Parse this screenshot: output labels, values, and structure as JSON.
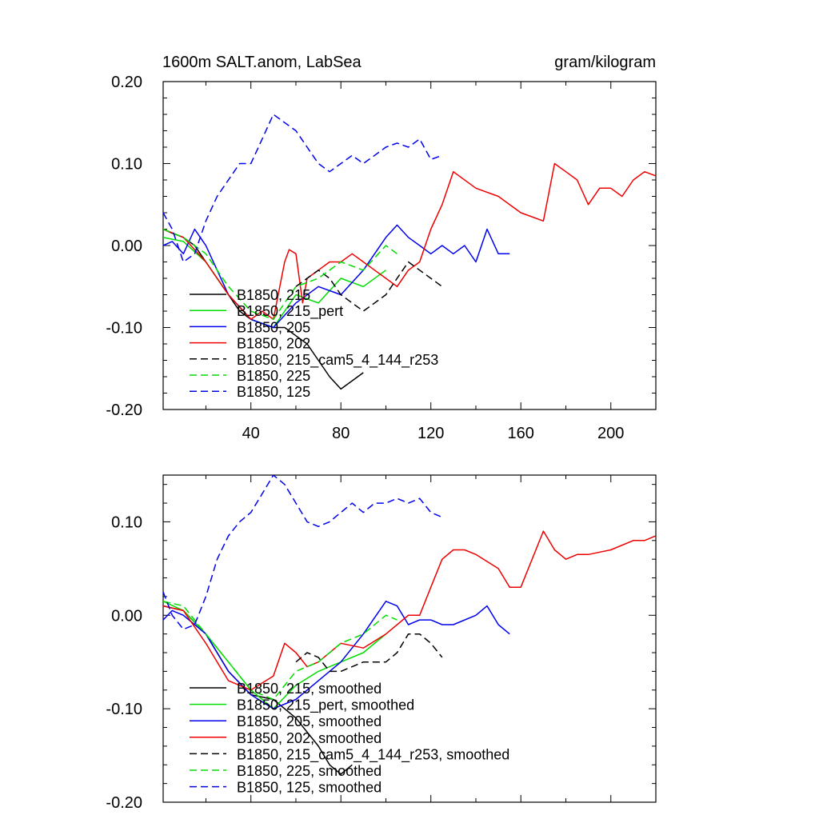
{
  "chart_data": [
    {
      "type": "line",
      "title": "1600m SALT.anom, LabSea",
      "units": "gram/kilogram",
      "xlim": [
        1,
        220
      ],
      "ylim": [
        -0.2,
        0.2
      ],
      "xticks": [
        40,
        80,
        120,
        160,
        200
      ],
      "xtick_labels": [
        "40",
        "80",
        "120",
        "160",
        "200"
      ],
      "yticks": [
        0.2,
        0.1,
        0.0,
        -0.1,
        -0.2
      ],
      "ytick_labels": [
        "0.20",
        "0.10",
        "0.00",
        "-0.10",
        "-0.20"
      ],
      "legend_position": "lower-left",
      "series": [
        {
          "name": "B1850, 215",
          "color": "#000000",
          "dash": "solid",
          "x": [
            1,
            5,
            10,
            15,
            20,
            25,
            30,
            35,
            40,
            45,
            50,
            55,
            60,
            65,
            70,
            75,
            80,
            85,
            90
          ],
          "y": [
            0.02,
            0.015,
            0.01,
            0.0,
            -0.02,
            -0.04,
            -0.06,
            -0.08,
            -0.09,
            -0.095,
            -0.1,
            -0.1,
            -0.11,
            -0.12,
            -0.14,
            -0.16,
            -0.175,
            -0.165,
            -0.155
          ]
        },
        {
          "name": "B1850, 215_pert",
          "color": "#00dd00",
          "dash": "solid",
          "x": [
            1,
            10,
            20,
            30,
            40,
            50,
            60,
            70,
            80,
            90,
            100
          ],
          "y": [
            0.01,
            0.005,
            -0.02,
            -0.06,
            -0.09,
            -0.1,
            -0.06,
            -0.07,
            -0.04,
            -0.05,
            -0.03
          ]
        },
        {
          "name": "B1850, 205",
          "color": "#0000ee",
          "dash": "solid",
          "x": [
            1,
            5,
            10,
            15,
            20,
            25,
            30,
            40,
            50,
            60,
            70,
            80,
            90,
            100,
            105,
            110,
            115,
            120,
            125,
            130,
            135,
            140,
            145,
            150,
            155
          ],
          "y": [
            0.0,
            0.005,
            -0.01,
            0.02,
            0.0,
            -0.03,
            -0.06,
            -0.09,
            -0.1,
            -0.07,
            -0.05,
            -0.06,
            -0.03,
            0.01,
            0.025,
            0.01,
            0.0,
            -0.01,
            0.0,
            -0.01,
            0.0,
            -0.02,
            0.02,
            -0.01,
            -0.01
          ]
        },
        {
          "name": "B1850, 202",
          "color": "#ee0000",
          "dash": "solid",
          "x": [
            1,
            10,
            20,
            30,
            40,
            45,
            50,
            55,
            57,
            60,
            63,
            65,
            70,
            75,
            80,
            85,
            90,
            95,
            100,
            105,
            110,
            115,
            120,
            125,
            130,
            140,
            150,
            160,
            170,
            175,
            180,
            185,
            190,
            195,
            200,
            205,
            210,
            215,
            220
          ],
          "y": [
            0.02,
            0.01,
            -0.02,
            -0.06,
            -0.09,
            -0.08,
            -0.09,
            -0.02,
            -0.005,
            -0.01,
            -0.07,
            -0.04,
            -0.03,
            -0.02,
            -0.02,
            -0.01,
            -0.02,
            -0.03,
            -0.04,
            -0.05,
            -0.03,
            -0.02,
            0.02,
            0.05,
            0.09,
            0.07,
            0.06,
            0.04,
            0.03,
            0.1,
            0.09,
            0.08,
            0.05,
            0.07,
            0.07,
            0.06,
            0.08,
            0.09,
            0.085
          ]
        },
        {
          "name": "B1850, 215_cam5_4_144_r253",
          "color": "#000000",
          "dash": "dashed",
          "x": [
            60,
            65,
            70,
            75,
            80,
            85,
            90,
            95,
            100,
            105,
            110,
            115,
            120,
            125
          ],
          "y": [
            -0.05,
            -0.04,
            -0.03,
            -0.04,
            -0.06,
            -0.07,
            -0.08,
            -0.07,
            -0.06,
            -0.04,
            -0.02,
            -0.03,
            -0.04,
            -0.05
          ]
        },
        {
          "name": "B1850, 225",
          "color": "#00dd00",
          "dash": "dashed",
          "x": [
            1,
            10,
            20,
            30,
            40,
            50,
            60,
            70,
            80,
            90,
            100,
            105
          ],
          "y": [
            0.02,
            0.01,
            -0.01,
            -0.05,
            -0.08,
            -0.09,
            -0.05,
            -0.04,
            -0.02,
            -0.03,
            0.0,
            -0.01
          ]
        },
        {
          "name": "B1850, 125",
          "color": "#0000ee",
          "dash": "dashed",
          "x": [
            1,
            5,
            10,
            15,
            20,
            25,
            30,
            35,
            40,
            45,
            50,
            55,
            60,
            65,
            70,
            75,
            80,
            85,
            90,
            95,
            100,
            105,
            110,
            115,
            120,
            125
          ],
          "y": [
            0.04,
            0.02,
            -0.02,
            -0.01,
            0.03,
            0.06,
            0.08,
            0.1,
            0.1,
            0.13,
            0.16,
            0.15,
            0.14,
            0.12,
            0.1,
            0.09,
            0.1,
            0.11,
            0.1,
            0.11,
            0.12,
            0.125,
            0.12,
            0.13,
            0.105,
            0.11
          ]
        }
      ]
    },
    {
      "type": "line",
      "xlim": [
        1,
        220
      ],
      "ylim": [
        -0.2,
        0.15
      ],
      "xticks": [
        40,
        80,
        120,
        160,
        200
      ],
      "yticks": [
        0.1,
        0.0,
        -0.1,
        -0.2
      ],
      "ytick_labels": [
        "0.10",
        "0.00",
        "-0.10",
        "-0.20"
      ],
      "legend_position": "lower-left",
      "series": [
        {
          "name": "B1850, 215, smoothed",
          "color": "#000000",
          "dash": "solid",
          "x": [
            1,
            10,
            20,
            30,
            40,
            50,
            60,
            70,
            75,
            80,
            85
          ],
          "y": [
            0.01,
            0.005,
            -0.02,
            -0.06,
            -0.085,
            -0.09,
            -0.11,
            -0.14,
            -0.16,
            -0.17,
            -0.16
          ]
        },
        {
          "name": "B1850, 215_pert, smoothed",
          "color": "#00dd00",
          "dash": "solid",
          "x": [
            1,
            10,
            20,
            30,
            40,
            50,
            60,
            70,
            80,
            90,
            100
          ],
          "y": [
            0.015,
            0.005,
            -0.02,
            -0.05,
            -0.08,
            -0.1,
            -0.075,
            -0.06,
            -0.05,
            -0.04,
            -0.02
          ]
        },
        {
          "name": "B1850, 205, smoothed",
          "color": "#0000ee",
          "dash": "solid",
          "x": [
            1,
            5,
            10,
            15,
            20,
            30,
            40,
            50,
            60,
            70,
            80,
            90,
            100,
            105,
            110,
            115,
            120,
            125,
            130,
            140,
            145,
            150,
            155
          ],
          "y": [
            -0.005,
            0.005,
            0.0,
            -0.01,
            -0.02,
            -0.06,
            -0.085,
            -0.1,
            -0.09,
            -0.07,
            -0.05,
            -0.02,
            0.015,
            0.01,
            -0.01,
            -0.005,
            -0.005,
            -0.01,
            -0.01,
            0.0,
            0.01,
            -0.01,
            -0.02
          ]
        },
        {
          "name": "B1850, 202, smoothed",
          "color": "#ee0000",
          "dash": "solid",
          "x": [
            1,
            10,
            20,
            30,
            40,
            50,
            55,
            60,
            65,
            70,
            80,
            90,
            100,
            110,
            115,
            120,
            125,
            130,
            135,
            140,
            150,
            155,
            160,
            170,
            175,
            180,
            185,
            190,
            200,
            210,
            215,
            220
          ],
          "y": [
            0.01,
            0.005,
            -0.03,
            -0.07,
            -0.08,
            -0.065,
            -0.03,
            -0.04,
            -0.055,
            -0.05,
            -0.03,
            -0.035,
            -0.02,
            0.0,
            0.0,
            0.03,
            0.06,
            0.07,
            0.07,
            0.065,
            0.05,
            0.03,
            0.03,
            0.09,
            0.07,
            0.06,
            0.065,
            0.065,
            0.07,
            0.08,
            0.08,
            0.085
          ]
        },
        {
          "name": "B1850, 215_cam5_4_144_r253, smoothed",
          "color": "#000000",
          "dash": "dashed",
          "x": [
            60,
            65,
            70,
            75,
            80,
            90,
            100,
            105,
            110,
            115,
            120,
            125
          ],
          "y": [
            -0.05,
            -0.04,
            -0.045,
            -0.06,
            -0.06,
            -0.05,
            -0.05,
            -0.04,
            -0.02,
            -0.02,
            -0.03,
            -0.045
          ]
        },
        {
          "name": "B1850, 225, smoothed",
          "color": "#00dd00",
          "dash": "dashed",
          "x": [
            1,
            10,
            20,
            30,
            40,
            50,
            60,
            70,
            80,
            90,
            100,
            105
          ],
          "y": [
            0.015,
            0.01,
            -0.02,
            -0.05,
            -0.08,
            -0.09,
            -0.06,
            -0.05,
            -0.03,
            -0.02,
            0.0,
            -0.005
          ]
        },
        {
          "name": "B1850, 125, smoothed",
          "color": "#0000ee",
          "dash": "dashed",
          "x": [
            1,
            5,
            10,
            15,
            20,
            25,
            30,
            35,
            40,
            45,
            50,
            55,
            60,
            65,
            70,
            75,
            80,
            85,
            90,
            95,
            100,
            105,
            110,
            115,
            120,
            125
          ],
          "y": [
            0.025,
            0.0,
            -0.015,
            -0.01,
            0.02,
            0.06,
            0.085,
            0.1,
            0.11,
            0.13,
            0.15,
            0.14,
            0.12,
            0.1,
            0.095,
            0.1,
            0.11,
            0.12,
            0.11,
            0.12,
            0.12,
            0.125,
            0.12,
            0.125,
            0.11,
            0.105
          ]
        }
      ]
    }
  ]
}
